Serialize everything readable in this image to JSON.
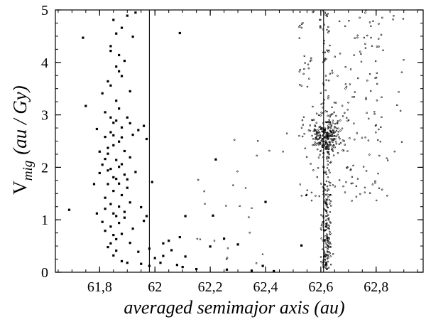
{
  "chart_data": {
    "type": "scatter",
    "xlabel": "averaged semimajor axis (au)",
    "ylabel": {
      "symbol": "V",
      "subscript": "mig",
      "unit": "(au / Gy)"
    },
    "xlim": [
      61.64,
      62.97
    ],
    "ylim": [
      0,
      5
    ],
    "xticks": [
      {
        "value": 61.8,
        "label": "61,8"
      },
      {
        "value": 62.0,
        "label": "62"
      },
      {
        "value": 62.2,
        "label": "62,2"
      },
      {
        "value": 62.4,
        "label": "62,4"
      },
      {
        "value": 62.6,
        "label": "62,6"
      },
      {
        "value": 62.8,
        "label": "62,8"
      }
    ],
    "yticks": [
      {
        "value": 0,
        "label": "0"
      },
      {
        "value": 1,
        "label": "1"
      },
      {
        "value": 2,
        "label": "2"
      },
      {
        "value": 3,
        "label": "3"
      },
      {
        "value": 4,
        "label": "4"
      },
      {
        "value": 5,
        "label": "5"
      }
    ],
    "minor_xtick_step": 0.05,
    "minor_ytick_step": 0.25,
    "vertical_lines": [
      61.98,
      62.61
    ],
    "grid": false,
    "legend": "none",
    "series": [
      {
        "marker": "filled-square",
        "color": "#000000",
        "points": [
          [
            61.69,
            1.19
          ],
          [
            61.74,
            4.47
          ],
          [
            61.75,
            3.17
          ],
          [
            61.78,
            1.68
          ],
          [
            61.79,
            2.73
          ],
          [
            61.79,
            1.12
          ],
          [
            61.8,
            1.89
          ],
          [
            61.8,
            2.3
          ],
          [
            61.81,
            0.96
          ],
          [
            61.81,
            3.41
          ],
          [
            61.81,
            2.05
          ],
          [
            61.82,
            0.79
          ],
          [
            61.82,
            2.58
          ],
          [
            61.82,
            1.42
          ],
          [
            61.82,
            3.05
          ],
          [
            61.83,
            0.48
          ],
          [
            61.83,
            2.26
          ],
          [
            61.83,
            1.68
          ],
          [
            61.83,
            3.64
          ],
          [
            61.84,
            0.87
          ],
          [
            61.84,
            2.67
          ],
          [
            61.84,
            1.3
          ],
          [
            61.84,
            4.22
          ],
          [
            61.84,
            1.97
          ],
          [
            61.85,
            0.32
          ],
          [
            61.85,
            2.85
          ],
          [
            61.85,
            1.12
          ],
          [
            61.85,
            4.81
          ],
          [
            61.85,
            2.42
          ],
          [
            61.85,
            1.55
          ],
          [
            61.86,
            3.92
          ],
          [
            61.86,
            0.63
          ],
          [
            61.86,
            2.14
          ],
          [
            61.86,
            3.27
          ],
          [
            61.86,
            1.78
          ],
          [
            61.86,
            4.55
          ],
          [
            61.87,
            0.94
          ],
          [
            61.87,
            2.49
          ],
          [
            61.87,
            1.25
          ],
          [
            61.87,
            3.12
          ],
          [
            61.87,
            2.01
          ],
          [
            61.88,
            0.21
          ],
          [
            61.88,
            4.66
          ],
          [
            61.88,
            1.47
          ],
          [
            61.88,
            2.76
          ],
          [
            61.88,
            3.74
          ],
          [
            61.88,
            0.73
          ],
          [
            61.89,
            1.86
          ],
          [
            61.89,
            2.31
          ],
          [
            61.89,
            4.03
          ],
          [
            61.89,
            1.04
          ],
          [
            61.9,
            2.95
          ],
          [
            61.9,
            0.18
          ],
          [
            61.9,
            4.89
          ],
          [
            61.9,
            1.61
          ],
          [
            61.91,
            2.19
          ],
          [
            61.91,
            0.56
          ],
          [
            61.91,
            3.45
          ],
          [
            61.91,
            1.33
          ],
          [
            61.92,
            4.49
          ],
          [
            61.92,
            2.62
          ],
          [
            61.92,
            0.83
          ],
          [
            61.93,
            1.91
          ],
          [
            61.93,
            4.95
          ],
          [
            61.94,
            0.39
          ],
          [
            61.94,
            2.71
          ],
          [
            61.95,
            1.24
          ],
          [
            61.95,
            0.16
          ],
          [
            61.96,
            2.79
          ],
          [
            61.96,
            0.98
          ],
          [
            61.97,
            2.54
          ],
          [
            61.97,
            1.07
          ],
          [
            61.98,
            0.45
          ],
          [
            61.98,
            0.12
          ],
          [
            61.84,
            3.56
          ],
          [
            61.85,
            1.81
          ],
          [
            61.86,
            2.89
          ],
          [
            61.83,
            2.37
          ],
          [
            61.84,
            0.55
          ],
          [
            61.87,
            1.69
          ],
          [
            61.88,
            2.06
          ],
          [
            61.82,
            1.21
          ],
          [
            61.85,
            2.61
          ],
          [
            61.87,
            3.83
          ],
          [
            61.89,
            1.15
          ],
          [
            61.86,
            0.41
          ],
          [
            61.84,
            4.31
          ],
          [
            61.88,
            2.57
          ],
          [
            61.83,
            1.94
          ],
          [
            61.85,
            0.71
          ],
          [
            61.9,
            1.77
          ],
          [
            61.91,
            2.84
          ],
          [
            61.87,
            4.14
          ],
          [
            61.82,
            2.16
          ],
          [
            61.86,
            1.07
          ],
          [
            61.84,
            2.95
          ],
          [
            61.99,
            1.72
          ],
          [
            62.0,
            0.27
          ],
          [
            62.02,
            0.18
          ],
          [
            62.03,
            0.31
          ],
          [
            62.03,
            0.55
          ],
          [
            62.05,
            0.6
          ],
          [
            62.06,
            0.42
          ],
          [
            62.08,
            0.14
          ],
          [
            62.09,
            0.67
          ],
          [
            62.09,
            4.56
          ],
          [
            62.1,
            0.1
          ],
          [
            62.11,
            1.07
          ],
          [
            62.11,
            0.3
          ],
          [
            62.15,
            0.06
          ],
          [
            62.2,
            0.49
          ],
          [
            62.21,
            1.08
          ],
          [
            62.22,
            2.15
          ],
          [
            62.25,
            0.64
          ],
          [
            62.26,
            0.05
          ],
          [
            62.3,
            0.53
          ],
          [
            62.35,
            0.03
          ],
          [
            62.39,
            0.12
          ],
          [
            62.4,
            1.34
          ],
          [
            62.43,
            0.02
          ],
          [
            62.53,
            0.51
          ]
        ]
      },
      {
        "marker": "open-circle",
        "color": "#000000",
        "generated": {
          "count": 700,
          "seed": 7,
          "spread_x": [
            62.52,
            62.9
          ],
          "column_center": 62.62,
          "column_width": 0.035,
          "clump_center": [
            62.62,
            2.6
          ],
          "clump_spread": [
            0.09,
            0.45
          ]
        },
        "points": []
      }
    ]
  }
}
